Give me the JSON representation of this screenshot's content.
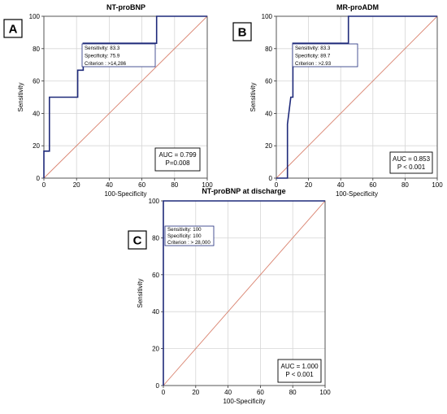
{
  "chart_data": [
    {
      "panel_label": "A",
      "type": "line",
      "title": "NT-proBNP",
      "xlabel": "100-Specificity",
      "ylabel": "Sensitivity",
      "xlim": [
        0,
        100
      ],
      "ylim": [
        0,
        100
      ],
      "xticks": [
        0,
        20,
        40,
        60,
        80,
        100
      ],
      "yticks": [
        0,
        20,
        40,
        60,
        80,
        100
      ],
      "grid": true,
      "reference_line": {
        "x": [
          0,
          100
        ],
        "y": [
          0,
          100
        ],
        "color": "#d9826e"
      },
      "series": [
        {
          "color": "#1f2a7a",
          "x": [
            0,
            0,
            3.4,
            3.4,
            20.7,
            20.7,
            24.1,
            24.1,
            69,
            69,
            100
          ],
          "y": [
            0,
            16.7,
            16.7,
            50,
            50,
            66.7,
            66.7,
            83.3,
            83.3,
            100,
            100
          ]
        }
      ],
      "criterion_box": {
        "lines": [
          "Sensitivity: 83.3",
          "Specificity: 75.9",
          "Criterion : >14,286"
        ]
      },
      "auc_box": {
        "lines": [
          "AUC = 0.799",
          "P=0.008"
        ]
      }
    },
    {
      "panel_label": "B",
      "type": "line",
      "title": "MR-proADM",
      "xlabel": "100-Specificity",
      "ylabel": "Sensitivity",
      "xlim": [
        0,
        100
      ],
      "ylim": [
        0,
        100
      ],
      "xticks": [
        0,
        20,
        40,
        60,
        80,
        100
      ],
      "yticks": [
        0,
        20,
        40,
        60,
        80,
        100
      ],
      "grid": true,
      "reference_line": {
        "x": [
          0,
          100
        ],
        "y": [
          0,
          100
        ],
        "color": "#d9826e"
      },
      "series": [
        {
          "color": "#1f2a7a",
          "x": [
            0,
            6.9,
            6.9,
            9,
            10.3,
            10.3,
            44.8,
            44.8,
            100
          ],
          "y": [
            0,
            0,
            33.3,
            50,
            50,
            83.3,
            83.3,
            100,
            100
          ]
        }
      ],
      "criterion_box": {
        "lines": [
          "Sensitivity: 83.3",
          "Specificity: 89.7",
          "Criterion : >2.93"
        ]
      },
      "auc_box": {
        "lines": [
          "AUC = 0.853",
          "P < 0.001"
        ]
      }
    },
    {
      "panel_label": "C",
      "type": "line",
      "title": "NT-proBNP at discharge",
      "xlabel": "100-Specificity",
      "ylabel": "Sensitivity",
      "xlim": [
        0,
        100
      ],
      "ylim": [
        0,
        100
      ],
      "xticks": [
        0,
        20,
        40,
        60,
        80,
        100
      ],
      "yticks": [
        0,
        20,
        40,
        60,
        80,
        100
      ],
      "grid": true,
      "reference_line": {
        "x": [
          0,
          100
        ],
        "y": [
          0,
          100
        ],
        "color": "#d9826e"
      },
      "series": [
        {
          "color": "#1f2a7a",
          "x": [
            0,
            0,
            100
          ],
          "y": [
            0,
            100,
            100
          ]
        }
      ],
      "criterion_box": {
        "lines": [
          "Sensitivity: 100",
          "Specificity: 100",
          "Criterion : > 28,000"
        ]
      },
      "auc_box": {
        "lines": [
          "AUC = 1.000",
          "P < 0.001"
        ]
      }
    }
  ]
}
